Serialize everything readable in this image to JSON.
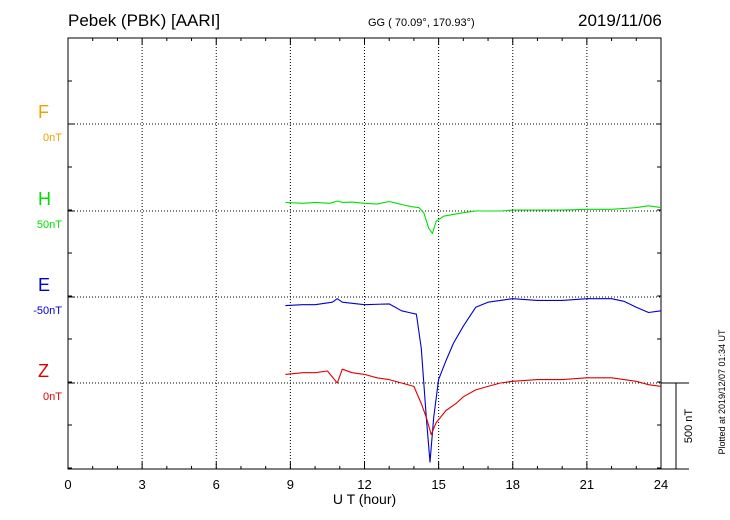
{
  "header": {
    "station": "Pebek (PBK)  [AARI]",
    "coords": "GG ( 70.09°, 170.93°)",
    "date": "2019/11/06"
  },
  "footer": {
    "plotted": "Plotted at 2019/12/07 01:34 UT"
  },
  "chart_data": {
    "type": "line",
    "title": "Pebek (PBK)  [AARI]",
    "xlabel": "U T (hour)",
    "xlim": [
      0,
      24
    ],
    "xticks": [
      0,
      3,
      6,
      9,
      12,
      15,
      18,
      21,
      24
    ],
    "scale_bar_label": "500 nT",
    "scale_bar_nT": 500,
    "grid": true,
    "series": [
      {
        "name": "F",
        "baseline_label": "0nT",
        "color": "#f0a000",
        "x": [],
        "y": []
      },
      {
        "name": "H",
        "baseline_label": "50nT",
        "color": "#00e000",
        "x": [
          8.8,
          9.5,
          10.0,
          10.6,
          10.9,
          11.1,
          11.5,
          12.0,
          12.5,
          13.0,
          13.3,
          13.6,
          13.9,
          14.2,
          14.4,
          14.6,
          14.75,
          14.9,
          15.2,
          15.6,
          16.0,
          16.5,
          17.0,
          17.5,
          18.0,
          19.0,
          20.0,
          21.0,
          22.0,
          23.0,
          23.5,
          24.0
        ],
        "y": [
          50,
          45,
          50,
          45,
          58,
          50,
          52,
          45,
          40,
          55,
          45,
          35,
          25,
          20,
          -10,
          -100,
          -130,
          -60,
          -30,
          -20,
          -10,
          0,
          0,
          0,
          5,
          5,
          5,
          10,
          10,
          20,
          30,
          20
        ]
      },
      {
        "name": "E",
        "baseline_label": "-50nT",
        "color": "#0000d0",
        "x": [
          8.8,
          9.5,
          10.0,
          10.7,
          10.9,
          11.1,
          12.0,
          13.0,
          13.5,
          13.8,
          14.1,
          14.3,
          14.5,
          14.65,
          14.8,
          15.0,
          15.3,
          15.6,
          16.0,
          16.5,
          17.0,
          17.5,
          18.0,
          19.0,
          20.0,
          21.0,
          22.0,
          22.5,
          23.0,
          23.5,
          24.0
        ],
        "y": [
          -50,
          -45,
          -45,
          -30,
          -10,
          -30,
          -45,
          -40,
          -80,
          -90,
          -100,
          -300,
          -700,
          -960,
          -700,
          -480,
          -370,
          -270,
          -170,
          -60,
          -30,
          -20,
          -10,
          -20,
          -20,
          -10,
          -10,
          -25,
          -60,
          -90,
          -80
        ]
      },
      {
        "name": "Z",
        "baseline_label": "0nT",
        "color": "#e00000",
        "x": [
          8.8,
          9.5,
          10.0,
          10.5,
          10.9,
          11.1,
          11.5,
          12.0,
          12.5,
          13.0,
          13.5,
          14.0,
          14.3,
          14.5,
          14.7,
          14.9,
          15.3,
          15.7,
          16.0,
          16.5,
          17.0,
          17.5,
          18.0,
          19.0,
          20.0,
          21.0,
          22.0,
          22.5,
          23.0,
          23.5,
          24.0
        ],
        "y": [
          50,
          60,
          60,
          70,
          0,
          80,
          60,
          50,
          30,
          20,
          0,
          -20,
          -120,
          -200,
          -300,
          -230,
          -160,
          -120,
          -80,
          -40,
          -20,
          0,
          10,
          20,
          20,
          30,
          30,
          20,
          10,
          -10,
          -20
        ]
      }
    ]
  }
}
